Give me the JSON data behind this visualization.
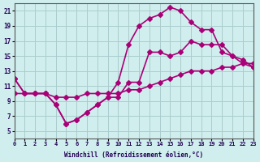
{
  "xlabel": "Windchill (Refroidissement éolien,°C)",
  "bg_color": "#d0eeee",
  "grid_color": "#aacccc",
  "line_color": "#aa0077",
  "line1_x": [
    0,
    1,
    2,
    3,
    4,
    5,
    6,
    7,
    8,
    9,
    10,
    11,
    12,
    13,
    14,
    15,
    16,
    17,
    18,
    19,
    20,
    21,
    22,
    23
  ],
  "line1_y": [
    12.0,
    10.0,
    10.0,
    10.0,
    8.5,
    6.0,
    6.5,
    7.5,
    8.5,
    9.5,
    11.5,
    16.5,
    19.0,
    20.0,
    20.5,
    21.5,
    21.0,
    19.5,
    18.5,
    18.5,
    15.5,
    15.0,
    14.0,
    13.5
  ],
  "line2_x": [
    0,
    1,
    2,
    3,
    4,
    5,
    6,
    7,
    8,
    9,
    10,
    11,
    12,
    13,
    14,
    15,
    16,
    17,
    18,
    19,
    20,
    21,
    22,
    23
  ],
  "line2_y": [
    12.0,
    10.0,
    10.0,
    10.0,
    8.5,
    6.0,
    6.5,
    7.5,
    8.5,
    9.5,
    9.5,
    11.5,
    11.5,
    15.5,
    15.5,
    15.0,
    15.5,
    17.0,
    16.5,
    16.5,
    16.5,
    15.0,
    14.5,
    13.5
  ],
  "line3_x": [
    0,
    1,
    2,
    3,
    4,
    5,
    6,
    7,
    8,
    9,
    10,
    11,
    12,
    13,
    14,
    15,
    16,
    17,
    18,
    19,
    20,
    21,
    22,
    23
  ],
  "line3_y": [
    10.0,
    10.0,
    10.0,
    10.0,
    9.5,
    9.5,
    9.5,
    10.0,
    10.0,
    10.0,
    10.0,
    10.5,
    10.5,
    11.0,
    11.5,
    12.0,
    12.5,
    13.0,
    13.0,
    13.0,
    13.5,
    13.5,
    14.0,
    14.0
  ],
  "xlim": [
    0,
    23
  ],
  "ylim": [
    4,
    22
  ],
  "xticks": [
    0,
    1,
    2,
    3,
    4,
    5,
    6,
    7,
    8,
    9,
    10,
    11,
    12,
    13,
    14,
    15,
    16,
    17,
    18,
    19,
    20,
    21,
    22,
    23
  ],
  "yticks": [
    5,
    7,
    9,
    11,
    13,
    15,
    17,
    19,
    21
  ],
  "marker": "D",
  "markersize": 3,
  "linewidth": 1.2
}
